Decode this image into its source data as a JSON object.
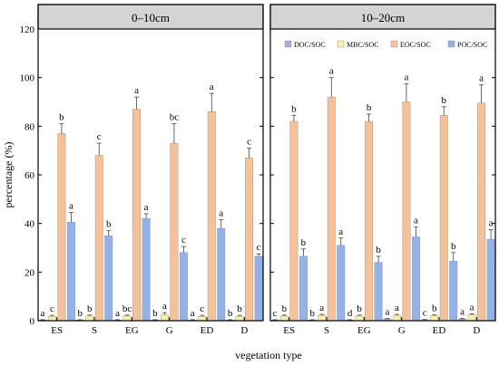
{
  "chart_data": {
    "type": "bar",
    "xlabel": "vegetation type",
    "ylabel": "percentage (%)",
    "ylim": [
      0,
      120
    ],
    "yticks": [
      0,
      20,
      40,
      60,
      80,
      100,
      120
    ],
    "categories": [
      "ES",
      "S",
      "EG",
      "G",
      "ED",
      "D"
    ],
    "legend": {
      "placement": "top-right of second panel",
      "entries": [
        {
          "name": "DOC/SOC",
          "color": "#b7a6d6"
        },
        {
          "name": "MBC/SOC",
          "color": "#f6f1a4"
        },
        {
          "name": "EOC/SOC",
          "color": "#f6c196"
        },
        {
          "name": "POC/SOC",
          "color": "#94b2ea"
        }
      ]
    },
    "panels": [
      {
        "title": "0–10cm",
        "series": [
          {
            "name": "DOC/SOC",
            "values": [
              0.3,
              0.3,
              0.3,
              0.3,
              0.3,
              0.3
            ],
            "errors": [
              0.1,
              0.1,
              0.1,
              0.1,
              0.1,
              0.1
            ],
            "letters": [
              "a",
              "b",
              "a",
              "b",
              "a",
              "b"
            ]
          },
          {
            "name": "MBC/SOC",
            "values": [
              1.8,
              1.9,
              1.9,
              2.4,
              1.8,
              1.8
            ],
            "errors": [
              0.4,
              0.4,
              0.4,
              0.9,
              0.4,
              0.4
            ],
            "letters": [
              "c",
              "b",
              "bc",
              "a",
              "c",
              "b"
            ]
          },
          {
            "name": "EOC/SOC",
            "values": [
              77,
              68,
              87,
              73,
              86,
              67
            ],
            "errors": [
              4,
              5,
              5,
              8,
              7.5,
              4
            ],
            "letters": [
              "b",
              "c",
              "a",
              "bc",
              "a",
              "c"
            ]
          },
          {
            "name": "POC/SOC",
            "values": [
              40.5,
              35,
              42,
              28,
              38,
              26.5
            ],
            "errors": [
              4,
              2,
              2,
              2.5,
              3.5,
              1
            ],
            "letters": [
              "a",
              "b",
              "a",
              "c",
              "a",
              "c"
            ]
          }
        ]
      },
      {
        "title": "10–20cm",
        "series": [
          {
            "name": "DOC/SOC",
            "values": [
              0.3,
              0.3,
              0.3,
              0.7,
              0.4,
              0.7
            ],
            "errors": [
              0.1,
              0.1,
              0.1,
              0.2,
              0.1,
              0.2
            ],
            "letters": [
              "c",
              "b",
              "d",
              "a",
              "c",
              "a"
            ]
          },
          {
            "name": "MBC/SOC",
            "values": [
              1.9,
              2.2,
              1.9,
              2.2,
              2.1,
              2.4
            ],
            "errors": [
              0.4,
              0.4,
              0.4,
              0.4,
              0.4,
              0.4
            ],
            "letters": [
              "b",
              "a",
              "b",
              "a",
              "b",
              "a"
            ]
          },
          {
            "name": "EOC/SOC",
            "values": [
              82,
              92,
              82,
              90,
              84.5,
              89.5
            ],
            "errors": [
              2.5,
              8,
              3,
              7.5,
              3.5,
              7.5
            ],
            "letters": [
              "b",
              "a",
              "b",
              "a",
              "b",
              "a"
            ]
          },
          {
            "name": "POC/SOC",
            "values": [
              26.5,
              31,
              24,
              34.5,
              24.5,
              33.5
            ],
            "errors": [
              3,
              3,
              2.5,
              4,
              3.5,
              4
            ],
            "letters": [
              "b",
              "a",
              "b",
              "a",
              "b",
              "a"
            ]
          }
        ]
      }
    ]
  }
}
